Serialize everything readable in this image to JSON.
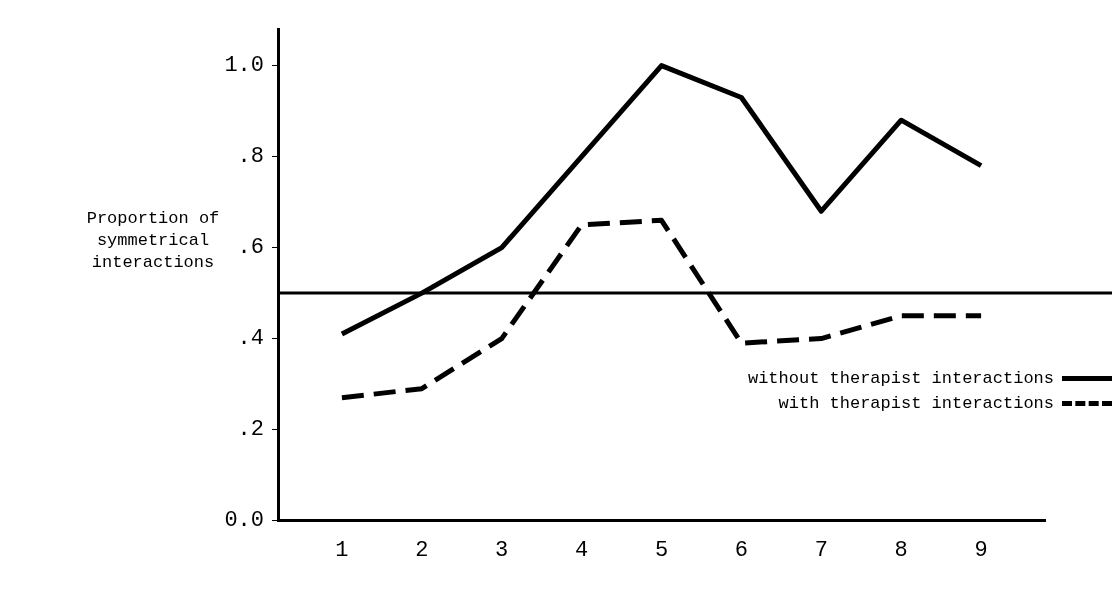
{
  "chart_data": {
    "type": "line",
    "ylabel": "Proportion of symmetrical interactions",
    "x": [
      1,
      2,
      3,
      4,
      5,
      6,
      7,
      8,
      9
    ],
    "series": [
      {
        "name": "without therapist interactions",
        "color": "#000000",
        "line_style": "solid",
        "values": [
          0.41,
          0.5,
          0.6,
          0.8,
          1.0,
          0.93,
          0.68,
          0.88,
          0.78
        ]
      },
      {
        "name": "with therapist interactions",
        "color": "#000000",
        "line_style": "dashed",
        "values": [
          0.27,
          0.29,
          0.4,
          0.65,
          0.66,
          0.39,
          0.4,
          0.45,
          0.45
        ]
      }
    ],
    "xlim": [
      0.2,
      9.8
    ],
    "xticks": [
      1,
      2,
      3,
      4,
      5,
      6,
      7,
      8,
      9
    ],
    "ylim": [
      0,
      1.08
    ],
    "yticks": [
      {
        "value": 0,
        "label": "0.0"
      },
      {
        "value": 0.2,
        "label": ".2"
      },
      {
        "value": 0.4,
        "label": ".4"
      },
      {
        "value": 0.6,
        "label": ".6"
      },
      {
        "value": 0.8,
        "label": ".8"
      },
      {
        "value": 1.0,
        "label": "1.0"
      }
    ],
    "ref_lines": [
      {
        "axis": "y",
        "value": 0.5,
        "label": null
      }
    ],
    "grid": false,
    "legend": "right",
    "marker": "none"
  }
}
